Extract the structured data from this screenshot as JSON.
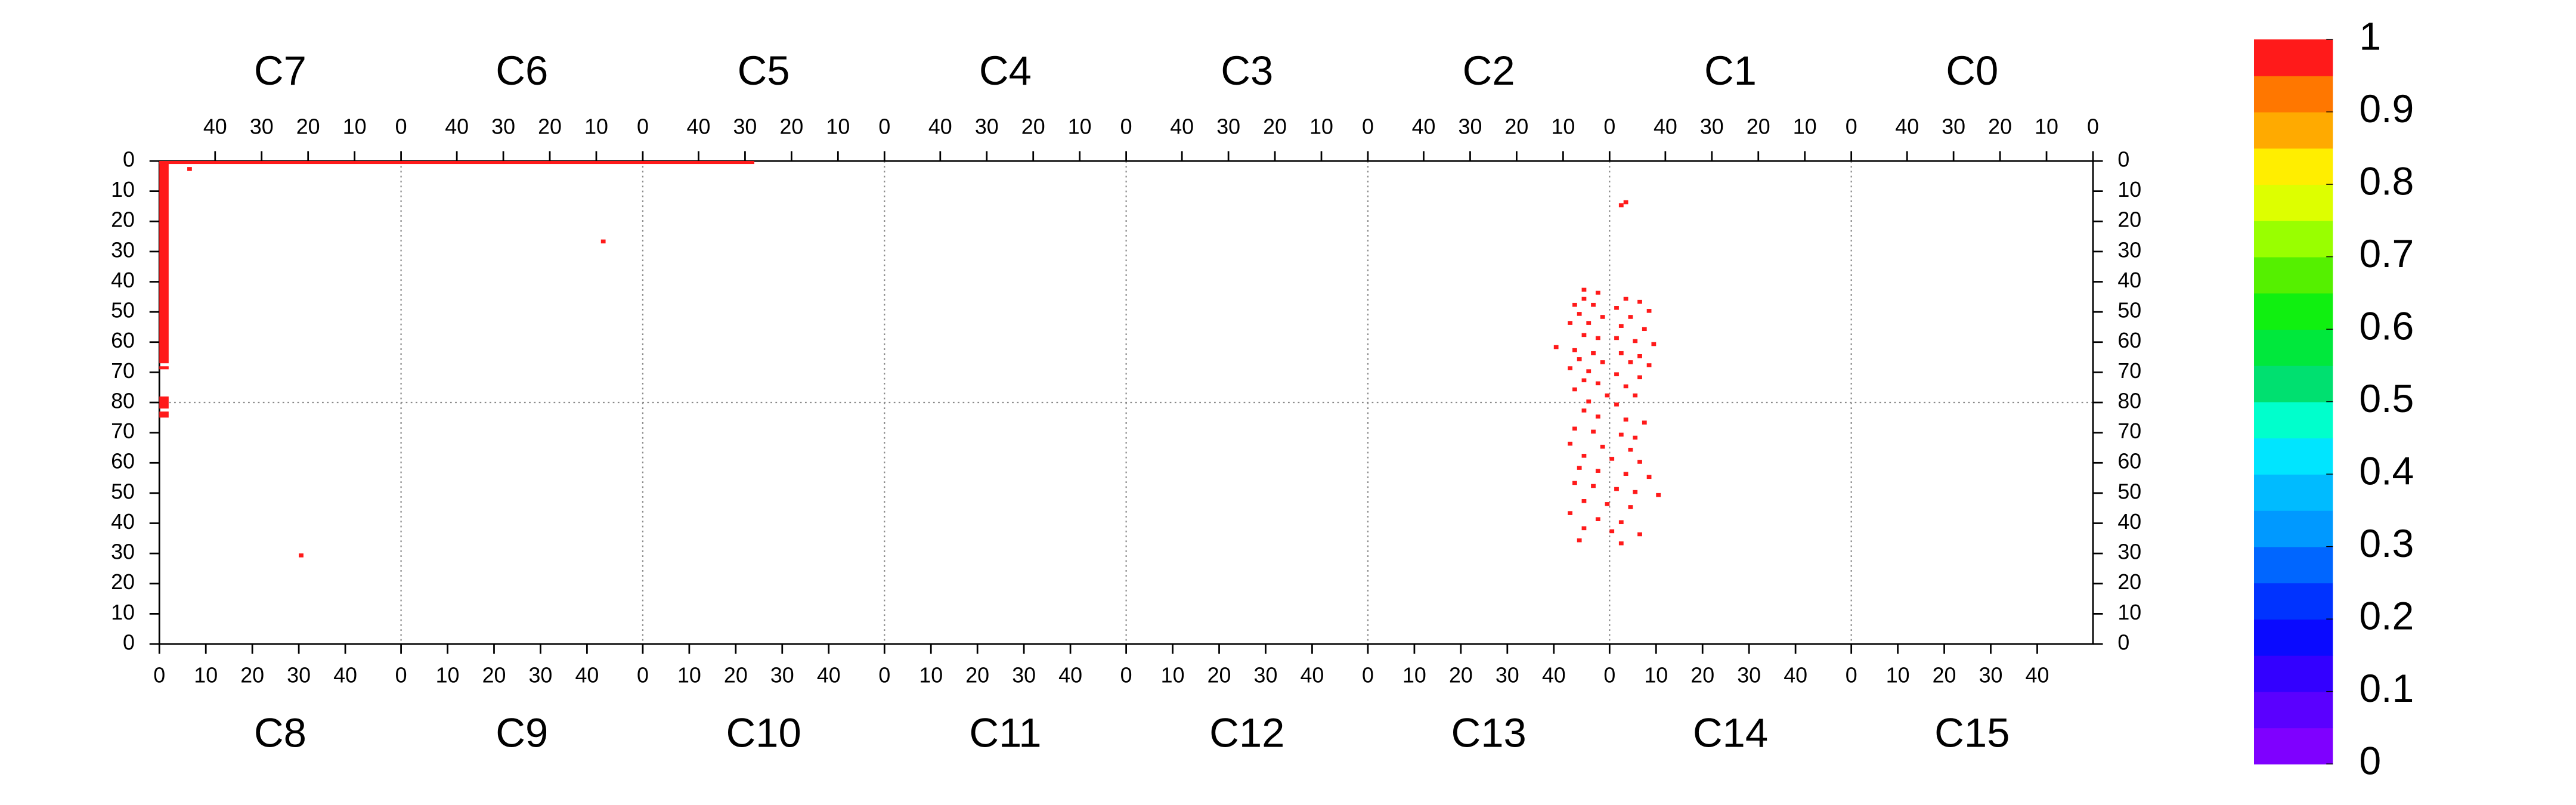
{
  "chart_data": {
    "type": "heatmap",
    "xlim": [
      0,
      416
    ],
    "ylim": [
      0,
      160
    ],
    "chips_top": [
      "C7",
      "C6",
      "C5",
      "C4",
      "C3",
      "C2",
      "C1",
      "C0"
    ],
    "chips_bottom": [
      "C8",
      "C9",
      "C10",
      "C11",
      "C12",
      "C13",
      "C14",
      "C15"
    ],
    "xticks_top": [
      {
        "value": 12,
        "label": "40"
      },
      {
        "value": 22,
        "label": "30"
      },
      {
        "value": 32,
        "label": "20"
      },
      {
        "value": 42,
        "label": "10"
      },
      {
        "value": 52,
        "label": "0"
      },
      {
        "value": 64,
        "label": "40"
      },
      {
        "value": 74,
        "label": "30"
      },
      {
        "value": 84,
        "label": "20"
      },
      {
        "value": 94,
        "label": "10"
      },
      {
        "value": 104,
        "label": "0"
      },
      {
        "value": 116,
        "label": "40"
      },
      {
        "value": 126,
        "label": "30"
      },
      {
        "value": 136,
        "label": "20"
      },
      {
        "value": 146,
        "label": "10"
      },
      {
        "value": 156,
        "label": "0"
      },
      {
        "value": 168,
        "label": "40"
      },
      {
        "value": 178,
        "label": "30"
      },
      {
        "value": 188,
        "label": "20"
      },
      {
        "value": 198,
        "label": "10"
      },
      {
        "value": 208,
        "label": "0"
      },
      {
        "value": 220,
        "label": "40"
      },
      {
        "value": 230,
        "label": "30"
      },
      {
        "value": 240,
        "label": "20"
      },
      {
        "value": 250,
        "label": "10"
      },
      {
        "value": 260,
        "label": "0"
      },
      {
        "value": 272,
        "label": "40"
      },
      {
        "value": 282,
        "label": "30"
      },
      {
        "value": 292,
        "label": "20"
      },
      {
        "value": 302,
        "label": "10"
      },
      {
        "value": 312,
        "label": "0"
      },
      {
        "value": 324,
        "label": "40"
      },
      {
        "value": 334,
        "label": "30"
      },
      {
        "value": 344,
        "label": "20"
      },
      {
        "value": 354,
        "label": "10"
      },
      {
        "value": 364,
        "label": "0"
      },
      {
        "value": 376,
        "label": "40"
      },
      {
        "value": 386,
        "label": "30"
      },
      {
        "value": 396,
        "label": "20"
      },
      {
        "value": 406,
        "label": "10"
      },
      {
        "value": 416,
        "label": "0"
      }
    ],
    "xticks_bottom": [
      0,
      10,
      20,
      30,
      40,
      {
        "value": 52,
        "label": "0"
      },
      {
        "value": 62,
        "label": "10"
      },
      {
        "value": 72,
        "label": "20"
      },
      {
        "value": 82,
        "label": "30"
      },
      {
        "value": 92,
        "label": "40"
      },
      {
        "value": 104,
        "label": "0"
      },
      {
        "value": 114,
        "label": "10"
      },
      {
        "value": 124,
        "label": "20"
      },
      {
        "value": 134,
        "label": "30"
      },
      {
        "value": 144,
        "label": "40"
      },
      {
        "value": 156,
        "label": "0"
      },
      {
        "value": 166,
        "label": "10"
      },
      {
        "value": 176,
        "label": "20"
      },
      {
        "value": 186,
        "label": "30"
      },
      {
        "value": 196,
        "label": "40"
      },
      {
        "value": 208,
        "label": "0"
      },
      {
        "value": 218,
        "label": "10"
      },
      {
        "value": 228,
        "label": "20"
      },
      {
        "value": 238,
        "label": "30"
      },
      {
        "value": 248,
        "label": "40"
      },
      {
        "value": 260,
        "label": "0"
      },
      {
        "value": 270,
        "label": "10"
      },
      {
        "value": 280,
        "label": "20"
      },
      {
        "value": 290,
        "label": "30"
      },
      {
        "value": 300,
        "label": "40"
      },
      {
        "value": 312,
        "label": "0"
      },
      {
        "value": 322,
        "label": "10"
      },
      {
        "value": 332,
        "label": "20"
      },
      {
        "value": 342,
        "label": "30"
      },
      {
        "value": 352,
        "label": "40"
      },
      {
        "value": 364,
        "label": "0"
      },
      {
        "value": 374,
        "label": "10"
      },
      {
        "value": 384,
        "label": "20"
      },
      {
        "value": 394,
        "label": "30"
      },
      {
        "value": 404,
        "label": "40"
      }
    ],
    "yticks": [
      0,
      10,
      20,
      30,
      40,
      50,
      60,
      70,
      80,
      {
        "value": 90,
        "label": "70"
      },
      {
        "value": 100,
        "label": "60"
      },
      {
        "value": 110,
        "label": "50"
      },
      {
        "value": 120,
        "label": "40"
      },
      {
        "value": 130,
        "label": "30"
      },
      {
        "value": 140,
        "label": "20"
      },
      {
        "value": 150,
        "label": "10"
      },
      {
        "value": 160,
        "label": "0"
      }
    ],
    "regions": [
      {
        "x": [
          0,
          128
        ],
        "y": [
          0,
          1
        ],
        "value": 1
      },
      {
        "x": [
          0,
          2
        ],
        "y": [
          0,
          67
        ],
        "value": 1
      },
      {
        "x": [
          0,
          2
        ],
        "y": [
          68,
          69
        ],
        "value": 1
      },
      {
        "x": [
          0,
          2
        ],
        "y": [
          78,
          82
        ],
        "value": 1
      },
      {
        "x": [
          0,
          2
        ],
        "y": [
          83,
          85
        ],
        "value": 1
      }
    ],
    "hits": {
      "x": [
        315,
        314,
        306,
        309,
        306,
        315,
        318,
        304,
        308,
        313,
        320,
        305,
        310,
        316,
        303,
        307,
        314,
        319,
        306,
        309,
        313,
        317,
        321,
        300,
        304,
        308,
        314,
        318,
        305,
        310,
        316,
        320,
        303,
        307,
        313,
        318,
        306,
        309,
        315,
        304,
        311,
        317,
        307,
        313,
        306,
        309,
        315,
        319,
        304,
        308,
        314,
        317,
        303,
        310,
        316,
        306,
        312,
        318,
        305,
        309,
        315,
        320,
        304,
        308,
        313,
        317,
        322,
        306,
        311,
        316,
        303,
        309,
        314,
        306,
        312,
        318,
        305,
        314,
        6,
        95,
        30
      ],
      "y": [
        13,
        14,
        42,
        43,
        45,
        45,
        46,
        47,
        47,
        48,
        49,
        50,
        51,
        51,
        53,
        53,
        54,
        55,
        57,
        58,
        58,
        59,
        60,
        61,
        62,
        63,
        63,
        64,
        65,
        66,
        66,
        67,
        68,
        69,
        70,
        71,
        72,
        73,
        74,
        75,
        77,
        77,
        79,
        80,
        82,
        84,
        85,
        86,
        88,
        89,
        90,
        91,
        93,
        94,
        95,
        97,
        98,
        99,
        101,
        102,
        103,
        104,
        106,
        107,
        108,
        109,
        110,
        112,
        113,
        114,
        116,
        118,
        119,
        121,
        122,
        123,
        125,
        126,
        2,
        26,
        130
      ],
      "values": [
        1,
        1,
        1,
        1,
        1,
        1,
        1,
        1,
        1,
        1,
        1,
        1,
        1,
        1,
        1,
        1,
        1,
        1,
        1,
        1,
        1,
        1,
        1,
        1,
        1,
        1,
        1,
        1,
        1,
        1,
        1,
        1,
        1,
        1,
        1,
        1,
        1,
        1,
        1,
        1,
        1,
        1,
        1,
        1,
        1,
        1,
        1,
        1,
        1,
        1,
        1,
        1,
        1,
        1,
        1,
        1,
        1,
        1,
        1,
        1,
        1,
        1,
        1,
        1,
        1,
        1,
        1,
        1,
        1,
        1,
        1,
        1,
        1,
        1,
        1,
        1,
        1,
        1,
        1,
        1,
        1
      ]
    },
    "colorbar": {
      "lim": [
        0,
        1
      ],
      "ticks": [
        0,
        0.1,
        0.2,
        0.3,
        0.4,
        0.5,
        0.6,
        0.7,
        0.8,
        0.9,
        1
      ],
      "colors": [
        "#7f00ff",
        "#5a00ff",
        "#3300ff",
        "#0a0aff",
        "#0033ff",
        "#0066ff",
        "#0099ff",
        "#00bbff",
        "#00e5ff",
        "#00ffcc",
        "#00e070",
        "#00e83c",
        "#10f010",
        "#55f000",
        "#99ff00",
        "#ddff00",
        "#ffee00",
        "#ffaa00",
        "#ff7700",
        "#ff1a1a"
      ]
    }
  }
}
